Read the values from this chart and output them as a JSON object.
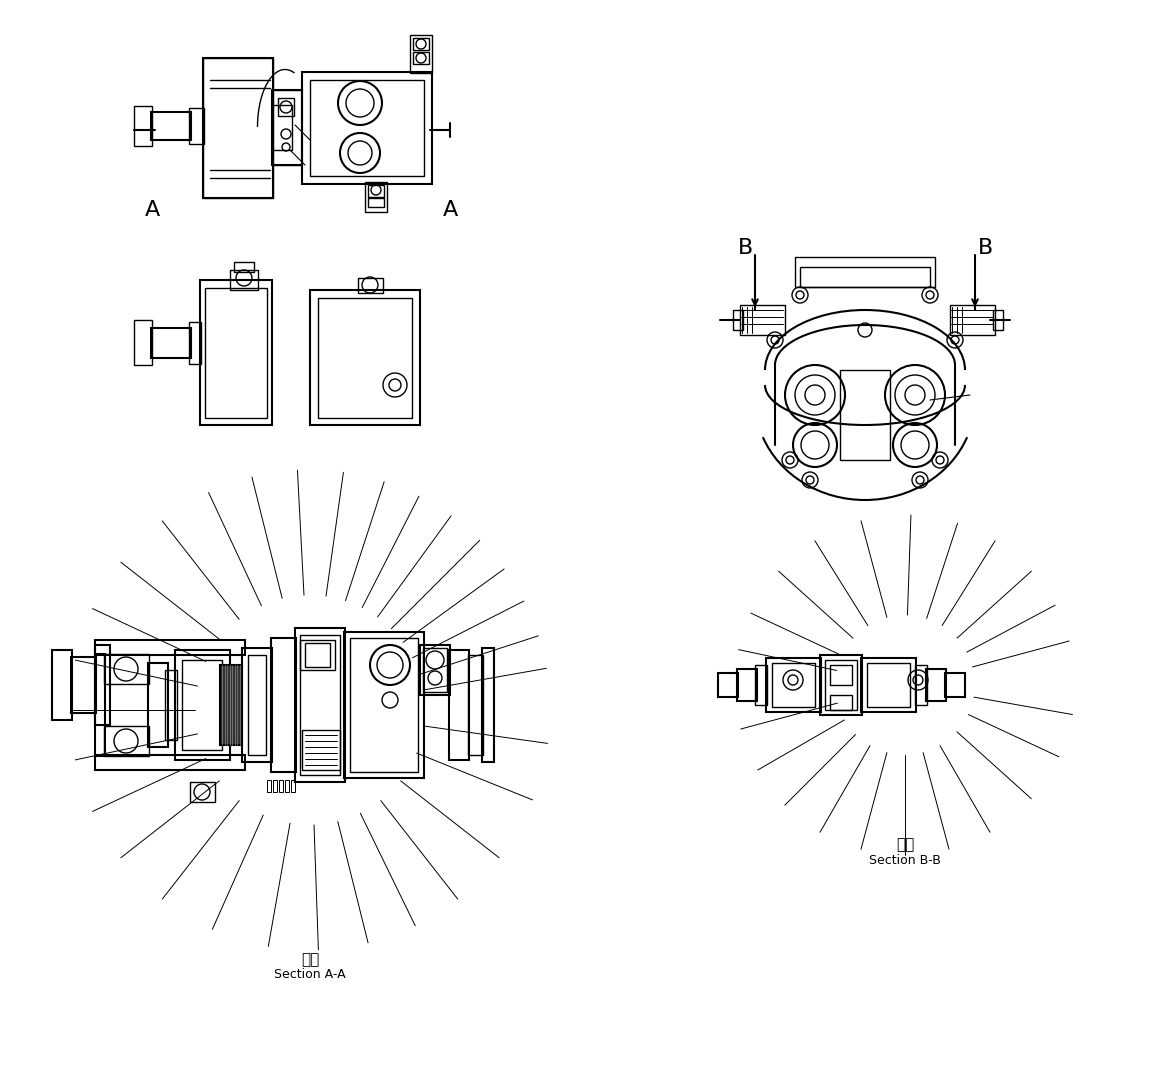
{
  "bg_color": "#ffffff",
  "line_color": "#000000",
  "fig_width": 11.68,
  "fig_height": 10.78,
  "section_aa_text1": "断面",
  "section_aa_text2": "Section A-A",
  "section_bb_text1": "断面",
  "section_bb_text2": "Section B-B",
  "label_A": "A",
  "label_B": "B"
}
